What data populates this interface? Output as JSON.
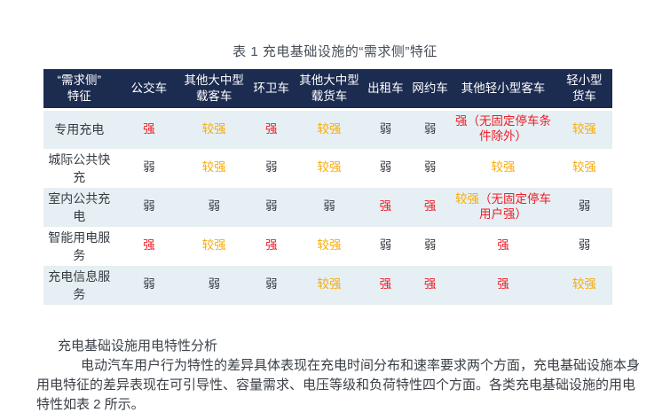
{
  "page": {
    "table_title": "表 1  充电基础设施的“需求侧”特征",
    "section_heading": "充电基础设施用电特性分析",
    "paragraph": "电动汽车用户行为特性的差异具体表现在充电时间分布和速率要求两个方面，充电基础设施本身用电特征的差异表现在可引导性、容量需求、电压等级和负荷特性四个方面。各类充电基础设施的用电特性如表 2 所示。"
  },
  "colors": {
    "header_bg": "#1c2b50",
    "header_text": "#ffffff",
    "row_alt_bg": "#e6eff3",
    "strong": "#ee1c25",
    "medium": "#f7ac0a",
    "weak": "#363b42"
  },
  "table": {
    "columns": [
      "“需求侧”\n特征",
      "公交车",
      "其他大中型\n载客车",
      "环卫车",
      "其他大中型\n载货车",
      "出租车",
      "网约车",
      "其他轻小型客车",
      "轻小型\n货车"
    ],
    "rows": [
      {
        "label": "专用充电",
        "cells": [
          [
            {
              "t": "强",
              "c": "strong"
            }
          ],
          [
            {
              "t": "较强",
              "c": "medium"
            }
          ],
          [
            {
              "t": "强",
              "c": "strong"
            }
          ],
          [
            {
              "t": "较强",
              "c": "medium"
            }
          ],
          [
            {
              "t": "弱",
              "c": "weak"
            }
          ],
          [
            {
              "t": "弱",
              "c": "weak"
            }
          ],
          [
            {
              "t": "强（无固定停车条\n件除外）",
              "c": "strong"
            }
          ],
          [
            {
              "t": "较强",
              "c": "medium"
            }
          ]
        ]
      },
      {
        "label": "城际公共快充",
        "cells": [
          [
            {
              "t": "弱",
              "c": "weak"
            }
          ],
          [
            {
              "t": "较强",
              "c": "medium"
            }
          ],
          [
            {
              "t": "弱",
              "c": "weak"
            }
          ],
          [
            {
              "t": "较强",
              "c": "medium"
            }
          ],
          [
            {
              "t": "弱",
              "c": "weak"
            }
          ],
          [
            {
              "t": "弱",
              "c": "weak"
            }
          ],
          [
            {
              "t": "较强",
              "c": "medium"
            }
          ],
          [
            {
              "t": "较强",
              "c": "medium"
            }
          ]
        ]
      },
      {
        "label": "室内公共充电",
        "cells": [
          [
            {
              "t": "弱",
              "c": "weak"
            }
          ],
          [
            {
              "t": "弱",
              "c": "weak"
            }
          ],
          [
            {
              "t": "弱",
              "c": "weak"
            }
          ],
          [
            {
              "t": "弱",
              "c": "weak"
            }
          ],
          [
            {
              "t": "强",
              "c": "strong"
            }
          ],
          [
            {
              "t": "强",
              "c": "strong"
            }
          ],
          [
            {
              "t": "较强",
              "c": "medium"
            },
            {
              "t": "（无固定停车\n用户强）",
              "c": "strong"
            }
          ],
          [
            {
              "t": "弱",
              "c": "weak"
            }
          ]
        ]
      },
      {
        "label": "智能用电服务",
        "cells": [
          [
            {
              "t": "强",
              "c": "strong"
            }
          ],
          [
            {
              "t": "较强",
              "c": "medium"
            }
          ],
          [
            {
              "t": "强",
              "c": "strong"
            }
          ],
          [
            {
              "t": "较强",
              "c": "medium"
            }
          ],
          [
            {
              "t": "弱",
              "c": "weak"
            }
          ],
          [
            {
              "t": "弱",
              "c": "weak"
            }
          ],
          [
            {
              "t": "强",
              "c": "strong"
            }
          ],
          [
            {
              "t": "弱",
              "c": "weak"
            }
          ]
        ]
      },
      {
        "label": "充电信息服务",
        "cells": [
          [
            {
              "t": "弱",
              "c": "weak"
            }
          ],
          [
            {
              "t": "弱",
              "c": "weak"
            }
          ],
          [
            {
              "t": "弱",
              "c": "weak"
            }
          ],
          [
            {
              "t": "较强",
              "c": "medium"
            }
          ],
          [
            {
              "t": "强",
              "c": "strong"
            }
          ],
          [
            {
              "t": "强",
              "c": "strong"
            }
          ],
          [
            {
              "t": "强",
              "c": "strong"
            }
          ],
          [
            {
              "t": "较强",
              "c": "medium"
            }
          ]
        ]
      }
    ]
  }
}
